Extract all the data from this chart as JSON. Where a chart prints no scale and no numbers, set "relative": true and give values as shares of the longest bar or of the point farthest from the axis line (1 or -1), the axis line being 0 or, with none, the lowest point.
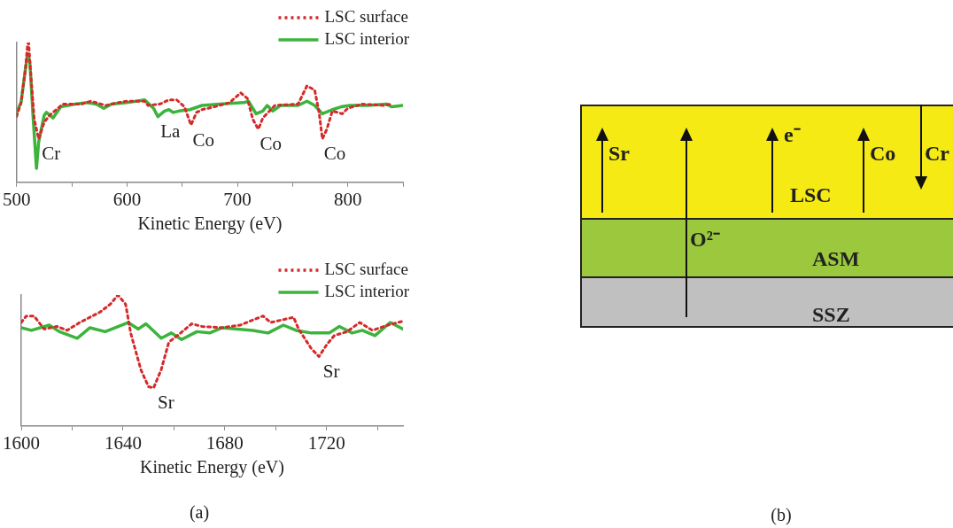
{
  "chart_data": [
    {
      "type": "line",
      "relative": true,
      "xlabel": "Kinetic Energy (eV)",
      "xlim": [
        500,
        850
      ],
      "xticks": [
        500,
        {
          "value": 550,
          "label": null
        },
        600,
        {
          "value": 650,
          "label": null
        },
        700,
        {
          "value": 750,
          "label": null
        },
        800,
        {
          "value": 850,
          "label": null
        }
      ],
      "tick_labels": "x",
      "legend": "top right",
      "grid": false,
      "series": [
        {
          "name": "LSC surface",
          "color": "#d42a2a",
          "line_style": "dotted",
          "x": [
            500,
            504,
            508,
            510,
            511,
            512,
            516,
            520,
            525,
            530,
            536,
            542,
            559,
            567,
            581,
            592,
            600,
            616,
            619,
            630,
            638,
            645,
            652,
            658,
            663,
            668,
            679,
            693,
            703,
            709,
            714,
            719,
            723,
            734,
            755,
            763,
            770,
            774,
            777,
            781,
            786,
            795,
            800,
            813,
            832,
            840
          ],
          "values": [
            0.47,
            0.57,
            0.81,
            0.99,
            1.0,
            0.86,
            0.45,
            0.31,
            0.43,
            0.48,
            0.52,
            0.56,
            0.56,
            0.58,
            0.55,
            0.57,
            0.58,
            0.58,
            0.55,
            0.56,
            0.59,
            0.59,
            0.54,
            0.41,
            0.5,
            0.52,
            0.54,
            0.57,
            0.64,
            0.6,
            0.45,
            0.38,
            0.46,
            0.55,
            0.56,
            0.69,
            0.66,
            0.5,
            0.31,
            0.38,
            0.51,
            0.49,
            0.53,
            0.56,
            0.55,
            0.56
          ]
        },
        {
          "name": "LSC interior",
          "color": "#3cb43c",
          "line_style": "solid",
          "x": [
            500,
            504,
            508,
            510,
            512,
            515,
            518,
            520,
            525,
            527,
            533,
            540,
            553,
            564,
            572,
            579,
            586,
            600,
            616,
            624,
            628,
            634,
            638,
            642,
            647,
            657,
            668,
            684,
            706,
            710,
            717,
            723,
            727,
            732,
            739,
            755,
            763,
            770,
            777,
            786,
            794,
            802,
            818,
            835,
            840,
            850
          ],
          "values": [
            0.5,
            0.57,
            0.81,
            0.92,
            0.86,
            0.46,
            0.1,
            0.29,
            0.48,
            0.5,
            0.46,
            0.54,
            0.56,
            0.57,
            0.56,
            0.53,
            0.56,
            0.57,
            0.59,
            0.53,
            0.47,
            0.51,
            0.52,
            0.5,
            0.51,
            0.52,
            0.55,
            0.56,
            0.57,
            0.58,
            0.49,
            0.51,
            0.55,
            0.51,
            0.55,
            0.55,
            0.58,
            0.55,
            0.49,
            0.52,
            0.54,
            0.55,
            0.55,
            0.56,
            0.54,
            0.55
          ]
        }
      ],
      "annotations": [
        {
          "text": "Cr",
          "x": 520,
          "y": 0.31
        },
        {
          "text": "La",
          "x": 628,
          "y": 0.47
        },
        {
          "text": "Co",
          "x": 658,
          "y": 0.41
        },
        {
          "text": "Co",
          "x": 719,
          "y": 0.38
        },
        {
          "text": "Co",
          "x": 777,
          "y": 0.31
        }
      ]
    },
    {
      "type": "line",
      "relative": true,
      "xlabel": "Kinetic Energy (eV)",
      "xlim": [
        1600,
        1750
      ],
      "xticks": [
        1600,
        {
          "value": 1620,
          "label": null
        },
        1640,
        {
          "value": 1660,
          "label": null
        },
        1680,
        {
          "value": 1700,
          "label": null
        },
        1720,
        {
          "value": 1740,
          "label": null
        }
      ],
      "tick_labels": "x",
      "legend": "top right",
      "grid": false,
      "series": [
        {
          "name": "LSC surface",
          "color": "#d42a2a",
          "line_style": "dotted",
          "x": [
            1600,
            1602,
            1605,
            1609,
            1614,
            1618,
            1623,
            1631,
            1635,
            1638,
            1641,
            1643,
            1647,
            1650,
            1652,
            1655,
            1658,
            1662,
            1667,
            1671,
            1679,
            1686,
            1695,
            1698,
            1707,
            1709,
            1714,
            1717,
            1720,
            1723,
            1728,
            1733,
            1738,
            1744,
            1750
          ],
          "values": [
            0.79,
            0.84,
            0.84,
            0.74,
            0.76,
            0.73,
            0.79,
            0.87,
            0.93,
            1.0,
            0.93,
            0.71,
            0.43,
            0.3,
            0.29,
            0.43,
            0.64,
            0.7,
            0.78,
            0.76,
            0.75,
            0.77,
            0.84,
            0.79,
            0.83,
            0.74,
            0.59,
            0.53,
            0.62,
            0.69,
            0.72,
            0.79,
            0.73,
            0.77,
            0.8
          ]
        },
        {
          "name": "LSC interior",
          "color": "#3cb43c",
          "line_style": "solid",
          "x": [
            1600,
            1604,
            1611,
            1615,
            1622,
            1627,
            1633,
            1642,
            1646,
            1649,
            1655,
            1659,
            1663,
            1669,
            1674,
            1679,
            1691,
            1697,
            1703,
            1708,
            1714,
            1721,
            1725,
            1730,
            1734,
            1739,
            1745,
            1750
          ],
          "values": [
            0.75,
            0.73,
            0.77,
            0.72,
            0.67,
            0.75,
            0.72,
            0.79,
            0.74,
            0.78,
            0.67,
            0.71,
            0.66,
            0.72,
            0.71,
            0.75,
            0.73,
            0.71,
            0.77,
            0.73,
            0.71,
            0.71,
            0.76,
            0.71,
            0.73,
            0.69,
            0.79,
            0.74
          ]
        }
      ],
      "annotations": [
        {
          "text": "Sr",
          "x": 1652,
          "y": 0.29
        },
        {
          "text": "Sr",
          "x": 1717,
          "y": 0.53
        },
        "(a)"
      ]
    },
    {
      "type": "other",
      "annotations": [
        "LSC",
        "ASM",
        "SSZ",
        "Sr",
        "e⁻",
        "Co",
        "Cr",
        "O²⁻",
        "(b)"
      ]
    }
  ]
}
